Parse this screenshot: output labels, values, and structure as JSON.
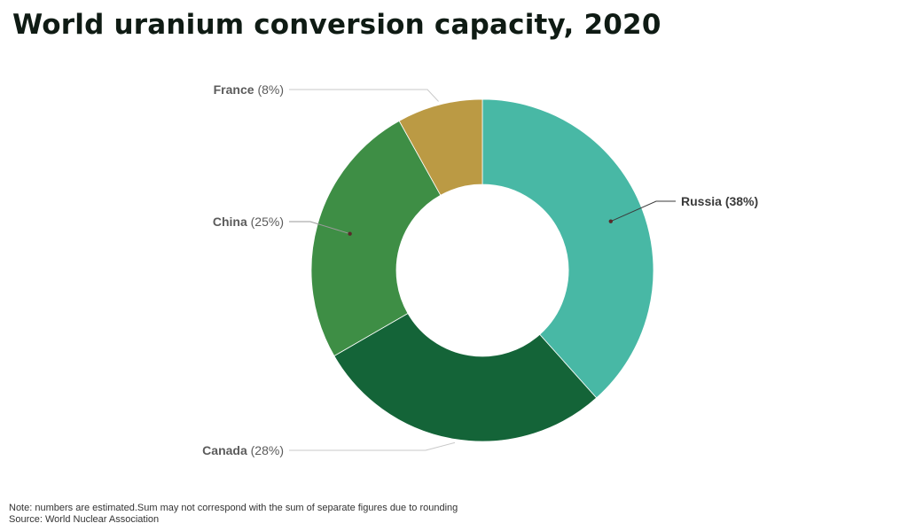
{
  "title": "World uranium conversion capacity, 2020",
  "chart_data": {
    "type": "pie",
    "donut": true,
    "title": "World uranium conversion capacity, 2020",
    "slices": [
      {
        "label": "Russia",
        "value": 38,
        "value_label": "(38%)",
        "color": "#48b8a5"
      },
      {
        "label": "Canada",
        "value": 28,
        "value_label": "(28%)",
        "color": "#146438"
      },
      {
        "label": "China",
        "value": 25,
        "value_label": "(25%)",
        "color": "#3e8e45"
      },
      {
        "label": "France",
        "value": 8,
        "value_label": "(8%)",
        "color": "#bb9a44"
      }
    ],
    "start_angle": "top",
    "direction": "clockwise",
    "highlighted": "Russia"
  },
  "footer": {
    "note": "Note: numbers are estimated.Sum may not correspond with the sum of separate figures due to rounding",
    "source": "Source: World Nuclear Association"
  }
}
